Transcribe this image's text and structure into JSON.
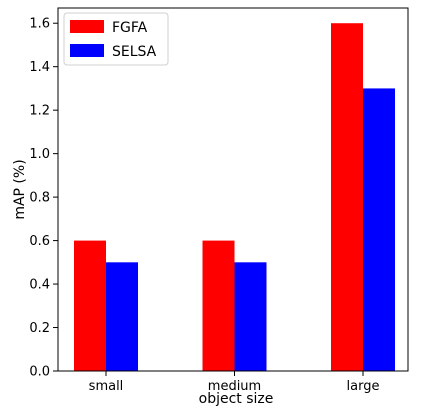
{
  "chart_data": {
    "type": "bar",
    "categories": [
      "small",
      "medium",
      "large"
    ],
    "series": [
      {
        "name": "FGFA",
        "color": "#ff0000",
        "values": [
          0.6,
          0.6,
          1.6
        ]
      },
      {
        "name": "SELSA",
        "color": "#0000ff",
        "values": [
          0.5,
          0.5,
          1.3
        ]
      }
    ],
    "xlabel": "object size",
    "ylabel": "mAP (%)",
    "ylim": [
      0,
      1.67
    ],
    "yticks": [
      0.0,
      0.2,
      0.4,
      0.6,
      0.8,
      1.0,
      1.2,
      1.4,
      1.6
    ],
    "ytick_labels": [
      "0.0",
      "0.2",
      "0.4",
      "0.6",
      "0.8",
      "1.0",
      "1.2",
      "1.4",
      "1.6"
    ],
    "legend_position": "top-left",
    "grid": false
  }
}
